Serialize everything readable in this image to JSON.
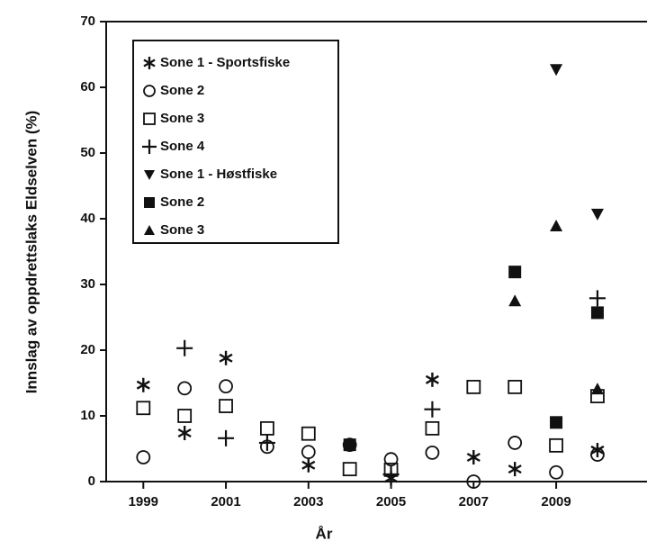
{
  "chart_data": {
    "type": "scatter",
    "x_label": "År",
    "y_label": "Innslag av oppdrettslaks Eldselven (%)",
    "xlim": [
      1998.1,
      2011.2
    ],
    "xticks": [
      1999,
      2001,
      2003,
      2005,
      2007,
      2009
    ],
    "ylim": [
      0,
      70
    ],
    "yticks": [
      0,
      10,
      20,
      30,
      40,
      50,
      60,
      70
    ],
    "legend": "upper left",
    "series": [
      {
        "name": "Sone 1 - Sportsfiske",
        "marker": "star",
        "color": "#111111",
        "x": [
          1999,
          2000,
          2001,
          2003,
          2005,
          2006,
          2007,
          2008,
          2010
        ],
        "values": [
          14.7,
          7.4,
          18.8,
          2.5,
          0.5,
          15.5,
          3.7,
          1.9,
          4.8
        ]
      },
      {
        "name": "Sone 2",
        "marker": "circle-open",
        "color": "#111111",
        "x": [
          1999,
          2000,
          2001,
          2002,
          2003,
          2004,
          2005,
          2006,
          2007,
          2008,
          2009,
          2010
        ],
        "values": [
          3.7,
          14.2,
          14.5,
          5.3,
          4.5,
          5.6,
          3.4,
          4.4,
          0,
          5.9,
          1.4,
          4.1
        ]
      },
      {
        "name": "Sone 3",
        "marker": "square-open",
        "color": "#111111",
        "x": [
          1999,
          2000,
          2001,
          2002,
          2003,
          2004,
          2005,
          2006,
          2007,
          2008,
          2009,
          2010
        ],
        "values": [
          11.2,
          10,
          11.5,
          8.1,
          7.3,
          1.9,
          1.8,
          8.1,
          14.4,
          14.4,
          5.5,
          13.0
        ]
      },
      {
        "name": "Sone 4",
        "marker": "plus",
        "color": "#111111",
        "x": [
          2000,
          2001,
          2002,
          2005,
          2006,
          2010
        ],
        "values": [
          20.3,
          6.6,
          5.9,
          1.1,
          11,
          27.9
        ]
      },
      {
        "name": "Sone 1 - Høstfiske",
        "marker": "triangle-down",
        "color": "#111111",
        "x": [
          2009,
          2010
        ],
        "values": [
          62.7,
          40.7
        ]
      },
      {
        "name": "Sone 2",
        "marker": "square",
        "color": "#111111",
        "x": [
          2004,
          2008,
          2009,
          2010
        ],
        "values": [
          5.6,
          31.9,
          9.0,
          25.7
        ]
      },
      {
        "name": "Sone 3",
        "marker": "triangle-up",
        "color": "#111111",
        "x": [
          2008,
          2009,
          2010
        ],
        "values": [
          27.5,
          38.9,
          14.1
        ]
      }
    ]
  }
}
